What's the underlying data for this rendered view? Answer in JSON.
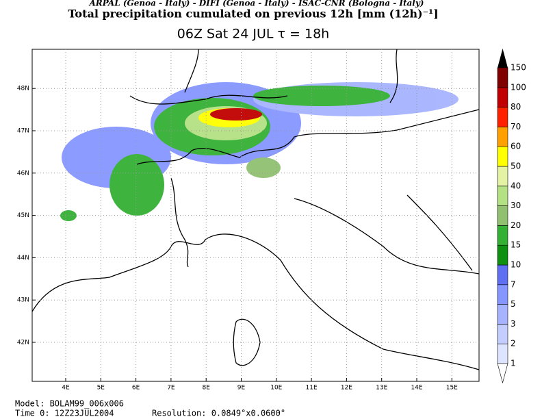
{
  "header": {
    "credits": "ARPAL (Genoa - Italy)  -  DIFI (Genoa - Italy)  -  ISAC-CNR (Bologna - Italy)",
    "title": "Total precipitation cumulated on previous 12h [mm (12h)⁻¹]",
    "subtitle": "06Z Sat 24 JUL  τ = 18h"
  },
  "map": {
    "lon_labels": [
      "4E",
      "5E",
      "6E",
      "7E",
      "8E",
      "9E",
      "10E",
      "11E",
      "12E",
      "13E",
      "14E",
      "15E"
    ],
    "lat_labels": [
      "42N",
      "43N",
      "44N",
      "45N",
      "46N",
      "47N",
      "48N"
    ]
  },
  "colorbar": {
    "levels": [
      1,
      2,
      3,
      5,
      7,
      10,
      15,
      20,
      30,
      40,
      50,
      60,
      70,
      80,
      100,
      150
    ],
    "colors": [
      "#dde4ff",
      "#c3cdff",
      "#a6b4ff",
      "#8596ff",
      "#5f6ff2",
      "#109010",
      "#34b034",
      "#90c070",
      "#b4e184",
      "#e4f2a4",
      "#ffff00",
      "#ffa000",
      "#ff2000",
      "#c00000",
      "#800000"
    ]
  },
  "footer": {
    "model": "Model: BOLAM99_006x006",
    "time0": "Time 0: 12Z23JUL2004",
    "resolution": "Resolution: 0.0849°x0.0600°"
  }
}
